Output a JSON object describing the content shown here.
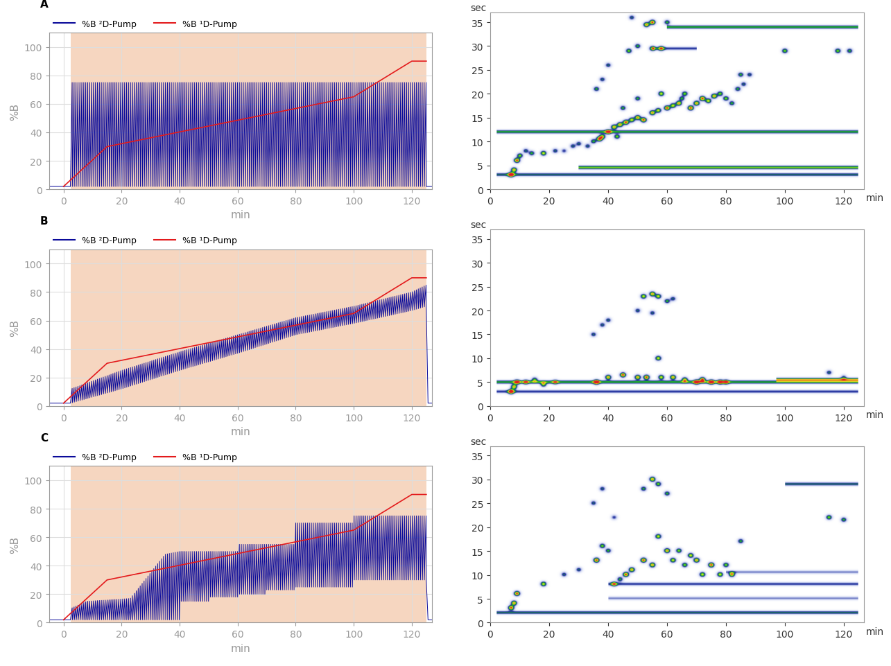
{
  "chart_data": [
    {
      "title": "A",
      "type": "line",
      "xlim": [
        -5,
        127
      ],
      "ylim": [
        0,
        110
      ],
      "xticks": [
        0,
        20,
        40,
        60,
        80,
        100,
        120
      ],
      "yticks": [
        0,
        20,
        40,
        60,
        80,
        100
      ],
      "x_label": "min",
      "y_label": "%B",
      "grid": true,
      "legend": "lower left",
      "shaded_range": [
        2.5,
        125
      ],
      "series": [
        {
          "name": "%B ²D-Pump",
          "color": "#0a0a9a",
          "type": "modulated",
          "period": 0.67,
          "x": [
            -5,
            2.5,
            2.5,
            125,
            125,
            127
          ],
          "low": [
            2,
            2,
            2,
            2,
            2,
            2
          ],
          "high": [
            2,
            2,
            75,
            75,
            2,
            2
          ]
        },
        {
          "name": "%B ¹D-Pump",
          "color": "#e31a1c",
          "type": "line",
          "x": [
            0,
            15,
            100,
            120,
            125
          ],
          "values": [
            2,
            30,
            65,
            90,
            90
          ]
        }
      ]
    },
    {
      "type": "heatmap",
      "xlim": [
        0,
        127
      ],
      "ylim": [
        0,
        37
      ],
      "xticks": [
        0,
        20,
        40,
        60,
        80,
        100,
        120
      ],
      "yticks": [
        0,
        5,
        10,
        15,
        20,
        25,
        30,
        35
      ],
      "x_label": "min",
      "y_label": "sec",
      "peaks": [
        [
          7,
          3,
          1
        ],
        [
          8,
          4,
          0.9
        ],
        [
          9,
          6,
          1
        ],
        [
          10,
          7,
          0.7
        ],
        [
          12,
          8,
          0.5
        ],
        [
          14,
          7.5,
          0.6
        ],
        [
          18,
          7.5,
          0.8
        ],
        [
          22,
          8,
          0.5
        ],
        [
          25,
          8,
          0.4
        ],
        [
          28,
          9,
          0.5
        ],
        [
          30,
          9.5,
          0.5
        ],
        [
          33,
          9,
          0.5
        ],
        [
          35,
          10,
          0.6
        ],
        [
          37,
          10.5,
          1
        ],
        [
          38,
          11,
          0.8
        ],
        [
          40,
          12,
          0.8
        ],
        [
          42,
          13,
          0.9
        ],
        [
          43,
          11,
          0.7
        ],
        [
          44,
          13.5,
          0.9
        ],
        [
          45,
          17,
          0.6
        ],
        [
          46,
          14,
          1
        ],
        [
          48,
          14.5,
          0.8
        ],
        [
          50,
          15,
          0.9
        ],
        [
          50,
          19,
          0.6
        ],
        [
          52,
          14.5,
          1
        ],
        [
          55,
          16,
          0.9
        ],
        [
          57,
          16.5,
          0.8
        ],
        [
          58,
          20,
          0.8
        ],
        [
          60,
          17,
          1
        ],
        [
          62,
          17.5,
          0.8
        ],
        [
          64,
          18,
          0.9
        ],
        [
          65,
          19,
          0.6
        ],
        [
          66,
          20,
          0.7
        ],
        [
          68,
          17,
          1
        ],
        [
          70,
          18,
          0.9
        ],
        [
          72,
          19,
          1
        ],
        [
          74,
          18.5,
          0.8
        ],
        [
          76,
          19.5,
          0.9
        ],
        [
          78,
          20,
          0.7
        ],
        [
          80,
          19,
          0.7
        ],
        [
          82,
          18,
          0.6
        ],
        [
          84,
          21,
          0.6
        ],
        [
          85,
          24,
          0.6
        ],
        [
          86,
          22,
          0.5
        ],
        [
          88,
          24,
          0.5
        ],
        [
          47,
          29,
          0.7
        ],
        [
          50,
          30,
          0.6
        ],
        [
          55,
          29.5,
          0.8
        ],
        [
          58,
          29.5,
          0.7
        ],
        [
          53,
          34.5,
          0.9
        ],
        [
          55,
          35,
          1
        ],
        [
          60,
          35,
          0.6
        ],
        [
          48,
          36,
          0.5
        ],
        [
          36,
          21,
          0.6
        ],
        [
          38,
          23,
          0.5
        ],
        [
          40,
          26,
          0.5
        ],
        [
          100,
          29,
          0.7
        ],
        [
          118,
          29,
          0.7
        ],
        [
          122,
          29,
          0.6
        ]
      ],
      "bands": [
        [
          12,
          2,
          125,
          0.6
        ],
        [
          4.5,
          30,
          125,
          0.7
        ],
        [
          3,
          2,
          125,
          0.5
        ],
        [
          34,
          60,
          125,
          0.6
        ],
        [
          29.5,
          55,
          70,
          0.4
        ]
      ]
    },
    {
      "title": "B",
      "type": "line",
      "xlim": [
        -5,
        127
      ],
      "ylim": [
        0,
        110
      ],
      "xticks": [
        0,
        20,
        40,
        60,
        80,
        100,
        120
      ],
      "yticks": [
        0,
        20,
        40,
        60,
        80,
        100
      ],
      "x_label": "min",
      "y_label": "%B",
      "grid": true,
      "legend": "lower left",
      "shaded_range": [
        2.5,
        125
      ],
      "series": [
        {
          "name": "%B ²D-Pump",
          "color": "#0a0a9a",
          "type": "modulated",
          "period": 0.67,
          "x": [
            -5,
            2.5,
            2.5,
            20,
            40,
            60,
            80,
            100,
            120,
            125,
            125,
            127
          ],
          "low": [
            2,
            2,
            2,
            12,
            25,
            37,
            50,
            58,
            67,
            70,
            2,
            2
          ],
          "high": [
            2,
            2,
            12,
            25,
            38,
            50,
            62,
            70,
            80,
            85,
            2,
            2
          ]
        },
        {
          "name": "%B ¹D-Pump",
          "color": "#e31a1c",
          "type": "line",
          "x": [
            0,
            15,
            100,
            120,
            125
          ],
          "values": [
            2,
            30,
            65,
            90,
            90
          ]
        }
      ]
    },
    {
      "type": "heatmap",
      "xlim": [
        0,
        127
      ],
      "ylim": [
        0,
        37
      ],
      "xticks": [
        0,
        20,
        40,
        60,
        80,
        100,
        120
      ],
      "yticks": [
        0,
        5,
        10,
        15,
        20,
        25,
        30,
        35
      ],
      "x_label": "min",
      "y_label": "sec",
      "peaks": [
        [
          7,
          3,
          1
        ],
        [
          8,
          4,
          0.9
        ],
        [
          9,
          5,
          0.8
        ],
        [
          12,
          5,
          0.6
        ],
        [
          15,
          5.5,
          0.6
        ],
        [
          18,
          4.5,
          0.7
        ],
        [
          22,
          5,
          0.5
        ],
        [
          36,
          5,
          1
        ],
        [
          40,
          6,
          0.9
        ],
        [
          45,
          6.5,
          1
        ],
        [
          50,
          6,
          0.9
        ],
        [
          53,
          6,
          1
        ],
        [
          57,
          10,
          0.8
        ],
        [
          58,
          6,
          0.8
        ],
        [
          62,
          6,
          0.9
        ],
        [
          66,
          5.5,
          0.8
        ],
        [
          70,
          5,
          0.9
        ],
        [
          72,
          5.5,
          1
        ],
        [
          75,
          5,
          0.9
        ],
        [
          78,
          5,
          0.8
        ],
        [
          80,
          5,
          0.7
        ],
        [
          35,
          15,
          0.5
        ],
        [
          38,
          17,
          0.5
        ],
        [
          40,
          18,
          0.5
        ],
        [
          52,
          23,
          0.8
        ],
        [
          55,
          23.5,
          0.9
        ],
        [
          57,
          23,
          0.8
        ],
        [
          50,
          20,
          0.5
        ],
        [
          55,
          19.5,
          0.5
        ],
        [
          60,
          22,
          0.6
        ],
        [
          62,
          22.5,
          0.5
        ],
        [
          115,
          7,
          0.5
        ],
        [
          120,
          6,
          0.4
        ]
      ],
      "bands": [
        [
          5,
          2,
          125,
          0.6
        ],
        [
          3,
          2,
          125,
          0.4
        ],
        [
          5.5,
          97,
          125,
          0.8
        ]
      ]
    },
    {
      "title": "C",
      "type": "line",
      "xlim": [
        -5,
        127
      ],
      "ylim": [
        0,
        110
      ],
      "xticks": [
        0,
        20,
        40,
        60,
        80,
        100,
        120
      ],
      "yticks": [
        0,
        20,
        40,
        60,
        80,
        100
      ],
      "x_label": "min",
      "y_label": "%B",
      "grid": true,
      "legend": "lower left",
      "shaded_range": [
        2.5,
        125
      ],
      "series": [
        {
          "name": "%B ²D-Pump",
          "color": "#0a0a9a",
          "type": "modulated",
          "period": 0.67,
          "x": [
            -5,
            2.5,
            2.5,
            8,
            23,
            35,
            40,
            40,
            50,
            50,
            60,
            60,
            70,
            70,
            80,
            80,
            100,
            100,
            125,
            125,
            127
          ],
          "low": [
            2,
            2,
            2,
            2,
            2,
            2,
            2,
            15,
            15,
            18,
            18,
            20,
            20,
            23,
            23,
            25,
            25,
            30,
            30,
            2,
            2
          ],
          "high": [
            2,
            2,
            10,
            15,
            17,
            48,
            50,
            50,
            50,
            50,
            50,
            55,
            55,
            55,
            55,
            70,
            70,
            75,
            75,
            2,
            2
          ]
        },
        {
          "name": "%B ¹D-Pump",
          "color": "#e31a1c",
          "type": "line",
          "x": [
            0,
            15,
            100,
            120,
            125
          ],
          "values": [
            2,
            30,
            65,
            90,
            90
          ]
        }
      ]
    },
    {
      "type": "heatmap",
      "xlim": [
        0,
        127
      ],
      "ylim": [
        0,
        37
      ],
      "xticks": [
        0,
        20,
        40,
        60,
        80,
        100,
        120
      ],
      "yticks": [
        0,
        5,
        10,
        15,
        20,
        25,
        30,
        35
      ],
      "x_label": "min",
      "y_label": "sec",
      "peaks": [
        [
          7,
          3,
          1
        ],
        [
          8,
          4,
          0.9
        ],
        [
          9,
          6,
          1
        ],
        [
          18,
          8,
          0.8
        ],
        [
          25,
          10,
          0.5
        ],
        [
          30,
          11,
          0.5
        ],
        [
          36,
          13,
          1
        ],
        [
          38,
          16,
          0.7
        ],
        [
          40,
          15,
          0.6
        ],
        [
          42,
          8,
          0.7
        ],
        [
          44,
          9,
          0.6
        ],
        [
          46,
          10,
          1
        ],
        [
          48,
          11,
          0.9
        ],
        [
          52,
          13,
          1
        ],
        [
          55,
          12,
          0.9
        ],
        [
          57,
          18,
          0.8
        ],
        [
          60,
          15,
          0.9
        ],
        [
          62,
          13,
          0.8
        ],
        [
          64,
          15,
          0.7
        ],
        [
          66,
          12,
          0.7
        ],
        [
          68,
          14,
          0.8
        ],
        [
          70,
          13,
          0.9
        ],
        [
          72,
          10,
          0.8
        ],
        [
          75,
          12,
          1
        ],
        [
          78,
          10,
          0.8
        ],
        [
          80,
          12,
          0.7
        ],
        [
          82,
          10,
          0.9
        ],
        [
          85,
          17,
          0.6
        ],
        [
          55,
          30,
          0.9
        ],
        [
          57,
          29,
          0.7
        ],
        [
          52,
          28,
          0.6
        ],
        [
          60,
          27,
          0.6
        ],
        [
          35,
          25,
          0.5
        ],
        [
          38,
          28,
          0.5
        ],
        [
          42,
          22,
          0.4
        ],
        [
          115,
          22,
          0.7
        ],
        [
          120,
          21.5,
          0.6
        ]
      ],
      "bands": [
        [
          2,
          2,
          125,
          0.5
        ],
        [
          5,
          40,
          125,
          0.3
        ],
        [
          8,
          40,
          125,
          0.4
        ],
        [
          29,
          100,
          125,
          0.5
        ],
        [
          10.5,
          80,
          125,
          0.3
        ]
      ]
    }
  ]
}
